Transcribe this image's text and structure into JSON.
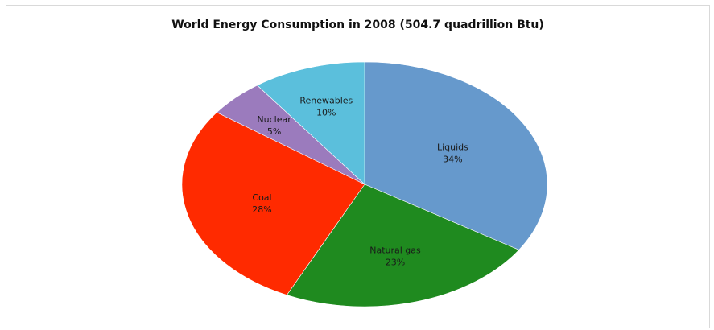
{
  "chart_data": {
    "type": "pie",
    "title": "World Energy Consumption in 2008 (504.7 quadrillion Btu)",
    "slices": [
      {
        "name": "Liquids",
        "value": 34,
        "label": "34%",
        "color": "#6699cc"
      },
      {
        "name": "Natural gas",
        "value": 23,
        "label": "23%",
        "color": "#1f8a1f"
      },
      {
        "name": "Coal",
        "value": 28,
        "label": "28%",
        "color": "#ff2a00"
      },
      {
        "name": "Nuclear",
        "value": 5,
        "label": "5%",
        "color": "#9b7bbd"
      },
      {
        "name": "Renewables",
        "value": 10,
        "label": "10%",
        "color": "#5bbfdc"
      }
    ],
    "start_angle_deg": 0,
    "direction": "clockwise",
    "legend": "none"
  }
}
